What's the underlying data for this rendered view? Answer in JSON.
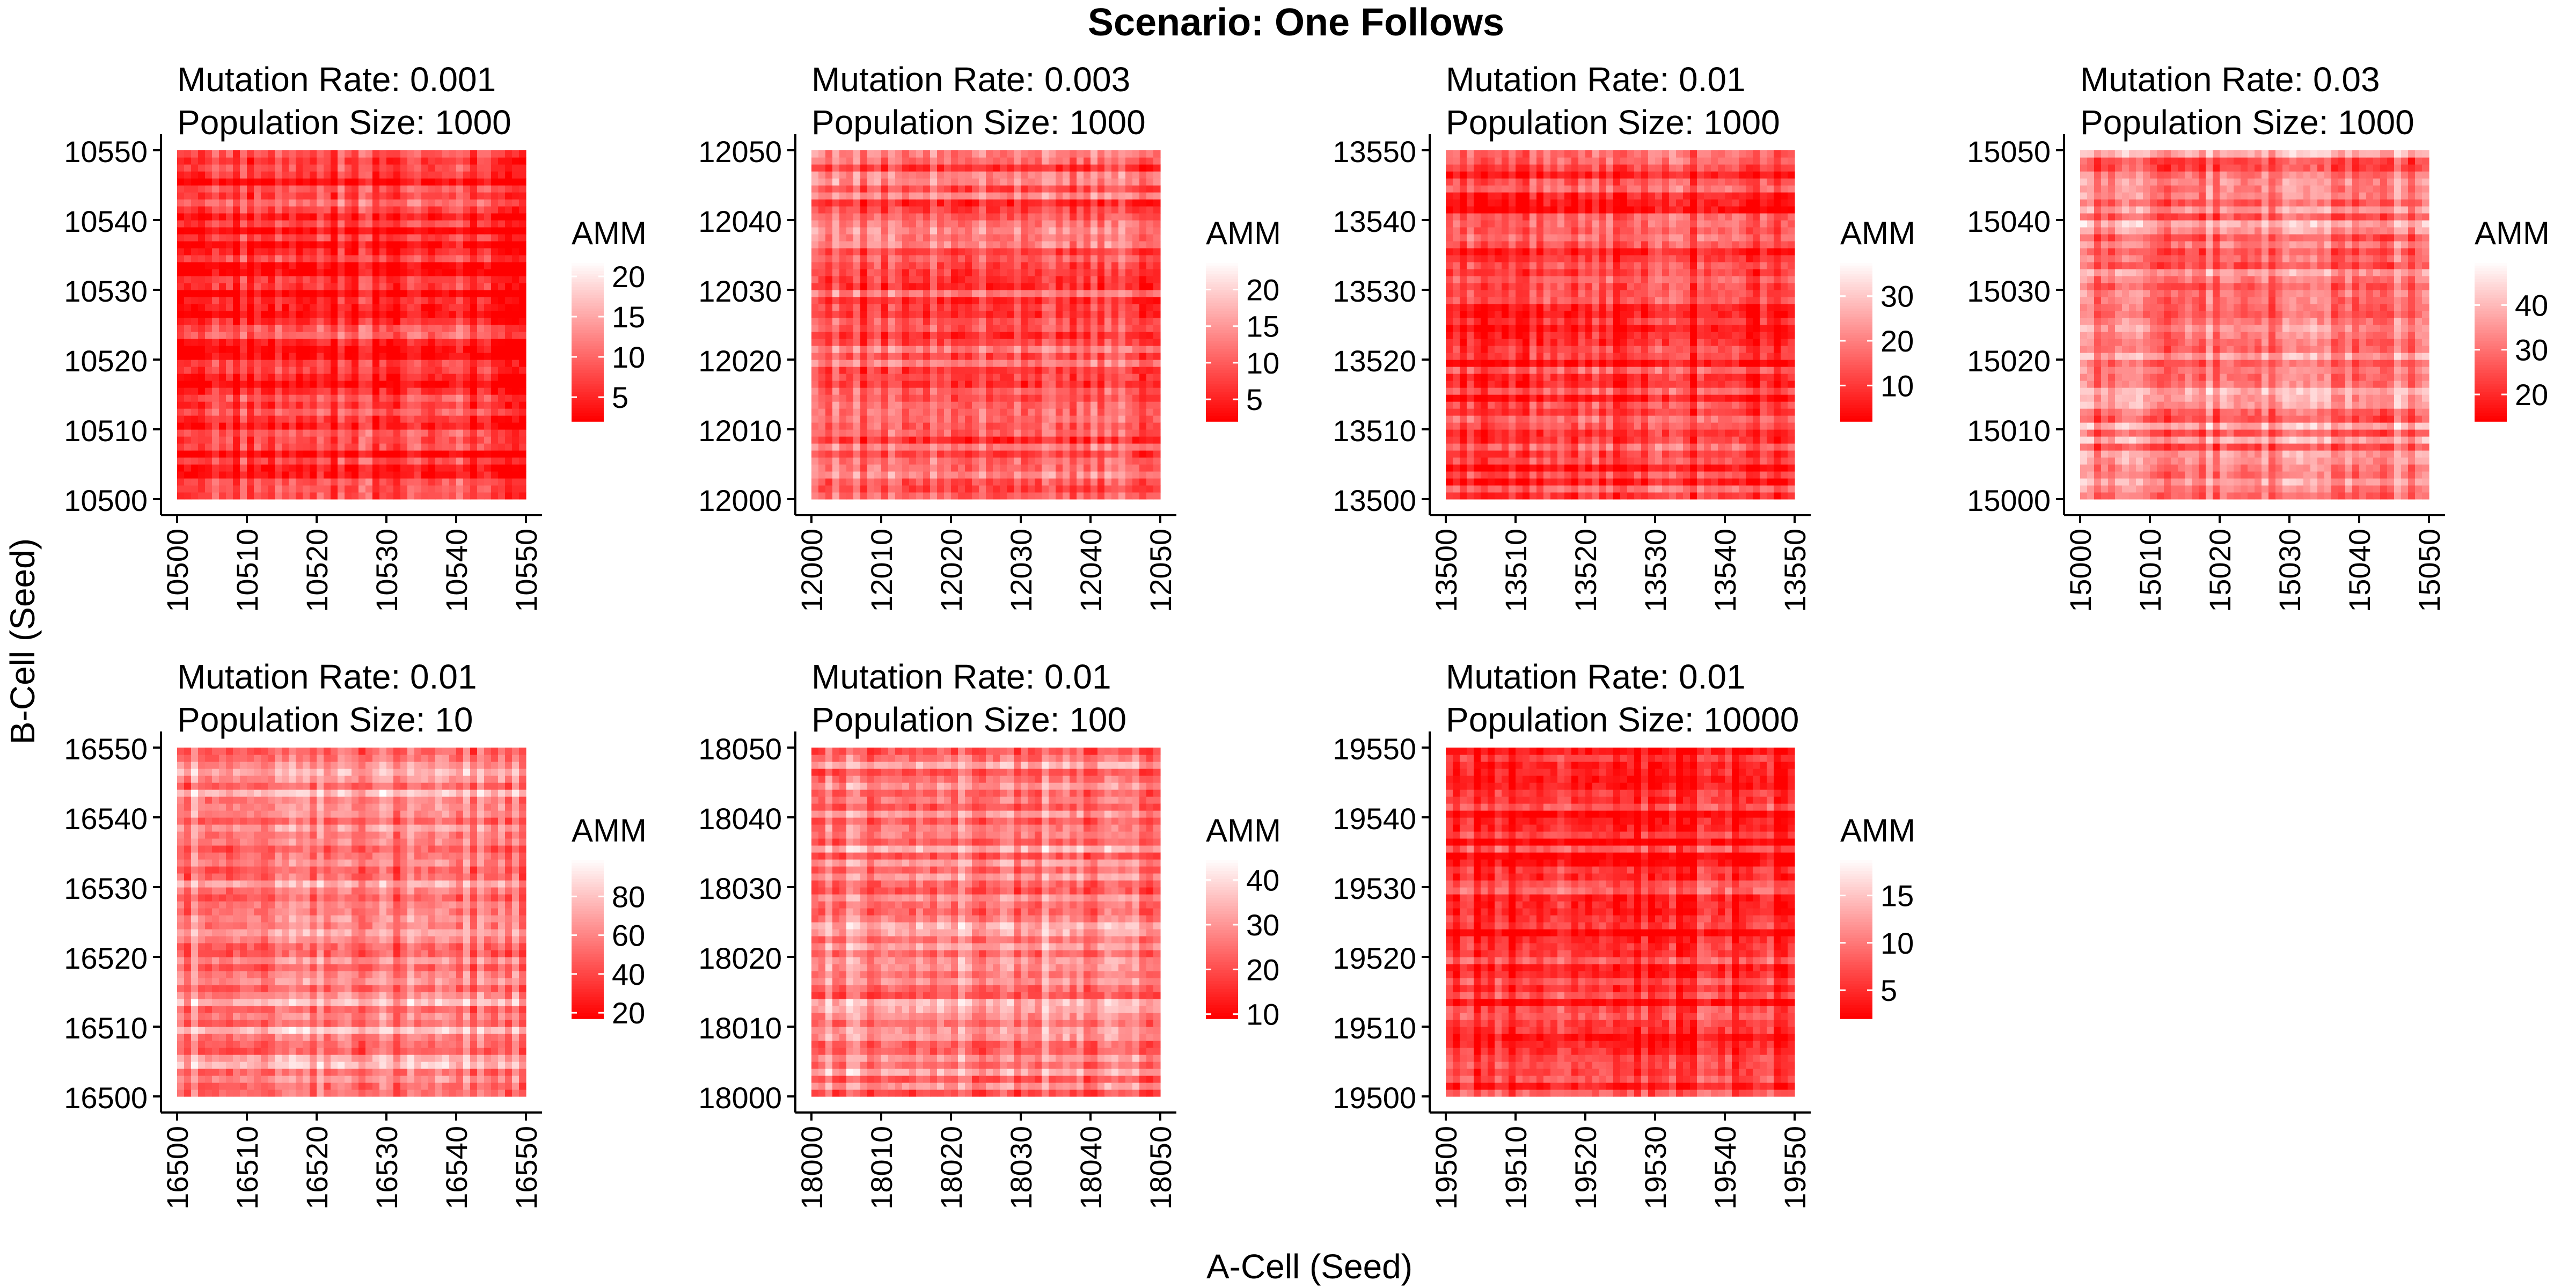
{
  "figure": {
    "title": "Scenario: One Follows",
    "xlabel": "A-Cell (Seed)",
    "ylabel": "B-Cell (Seed)"
  },
  "chart_data": [
    {
      "type": "heatmap",
      "title_line1": "Mutation Rate: 0.001",
      "title_line2": "Population Size: 1000",
      "x_range": [
        10500,
        10550
      ],
      "y_range": [
        10500,
        10550
      ],
      "x_ticks": [
        10500,
        10510,
        10520,
        10530,
        10540,
        10550
      ],
      "y_ticks": [
        10500,
        10510,
        10520,
        10530,
        10540,
        10550
      ],
      "legend": {
        "title": "AMM",
        "range": [
          2,
          22
        ],
        "ticks": [
          5,
          10,
          15,
          20
        ]
      },
      "typical_value": 6
    },
    {
      "type": "heatmap",
      "title_line1": "Mutation Rate: 0.003",
      "title_line2": "Population Size: 1000",
      "x_range": [
        12000,
        12050
      ],
      "y_range": [
        12000,
        12050
      ],
      "x_ticks": [
        12000,
        12010,
        12020,
        12030,
        12040,
        12050
      ],
      "y_ticks": [
        12000,
        12010,
        12020,
        12030,
        12040,
        12050
      ],
      "legend": {
        "title": "AMM",
        "range": [
          2,
          24
        ],
        "ticks": [
          5,
          10,
          15,
          20
        ]
      },
      "typical_value": 10
    },
    {
      "type": "heatmap",
      "title_line1": "Mutation Rate: 0.01",
      "title_line2": "Population Size: 1000",
      "x_range": [
        13500,
        13550
      ],
      "y_range": [
        13500,
        13550
      ],
      "x_ticks": [
        13500,
        13510,
        13520,
        13530,
        13540,
        13550
      ],
      "y_ticks": [
        13500,
        13510,
        13520,
        13530,
        13540,
        13550
      ],
      "legend": {
        "title": "AMM",
        "range": [
          2,
          38
        ],
        "ticks": [
          10,
          20,
          30
        ]
      },
      "typical_value": 10
    },
    {
      "type": "heatmap",
      "title_line1": "Mutation Rate: 0.03",
      "title_line2": "Population Size: 1000",
      "x_range": [
        15000,
        15050
      ],
      "y_range": [
        15000,
        15050
      ],
      "x_ticks": [
        15000,
        15010,
        15020,
        15030,
        15040,
        15050
      ],
      "y_ticks": [
        15000,
        15010,
        15020,
        15030,
        15040,
        15050
      ],
      "legend": {
        "title": "AMM",
        "range": [
          14,
          50
        ],
        "ticks": [
          20,
          30,
          40
        ]
      },
      "typical_value": 32
    },
    {
      "type": "heatmap",
      "title_line1": "Mutation Rate: 0.01",
      "title_line2": "Population Size: 10",
      "x_range": [
        16500,
        16550
      ],
      "y_range": [
        16500,
        16550
      ],
      "x_ticks": [
        16500,
        16510,
        16520,
        16530,
        16540,
        16550
      ],
      "y_ticks": [
        16500,
        16510,
        16520,
        16530,
        16540,
        16550
      ],
      "legend": {
        "title": "AMM",
        "range": [
          17,
          100
        ],
        "ticks": [
          20,
          40,
          60,
          80
        ]
      },
      "typical_value": 65
    },
    {
      "type": "heatmap",
      "title_line1": "Mutation Rate: 0.01",
      "title_line2": "Population Size: 100",
      "x_range": [
        18000,
        18050
      ],
      "y_range": [
        18000,
        18050
      ],
      "x_ticks": [
        18000,
        18010,
        18020,
        18030,
        18040,
        18050
      ],
      "y_ticks": [
        18000,
        18010,
        18020,
        18030,
        18040,
        18050
      ],
      "legend": {
        "title": "AMM",
        "range": [
          9,
          45
        ],
        "ticks": [
          10,
          20,
          30,
          40
        ]
      },
      "typical_value": 28
    },
    {
      "type": "heatmap",
      "title_line1": "Mutation Rate: 0.01",
      "title_line2": "Population Size: 10000",
      "x_range": [
        19500,
        19550
      ],
      "y_range": [
        19500,
        19550
      ],
      "x_ticks": [
        19500,
        19510,
        19520,
        19530,
        19540,
        19550
      ],
      "y_ticks": [
        19500,
        19510,
        19520,
        19530,
        19540,
        19550
      ],
      "legend": {
        "title": "AMM",
        "range": [
          2,
          19
        ],
        "ticks": [
          5,
          10,
          15
        ]
      },
      "typical_value": 5
    }
  ],
  "colors": {
    "high": "#ffffff",
    "low": "#ff0000",
    "axis": "#000000"
  }
}
